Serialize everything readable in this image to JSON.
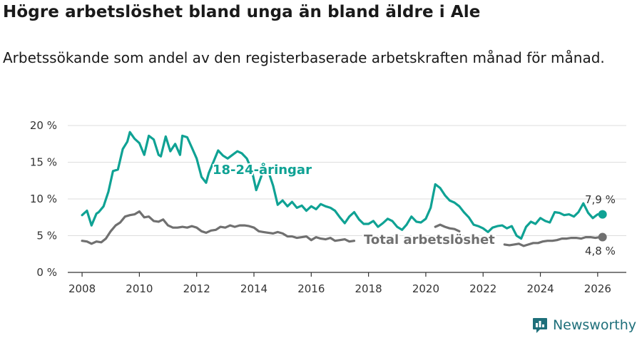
{
  "title": "Högre arbetslöshet bland unga än bland äldre i Ale",
  "subtitle": "Arbetssökande som andel av den registerbaserade arbetskraften månad för månad.",
  "brand": "Newsworthy",
  "colors": {
    "youth": "#0fa294",
    "total": "#707070",
    "grid": "#dddddd",
    "axis": "#333333"
  },
  "chart_data": {
    "type": "line",
    "title": "Högre arbetslöshet bland unga än bland äldre i Ale",
    "xlabel": "",
    "ylabel": "",
    "xlim": [
      2007.5,
      2027.0
    ],
    "ylim": [
      0,
      20
    ],
    "x_ticks": [
      2008,
      2010,
      2012,
      2014,
      2016,
      2018,
      2020,
      2022,
      2024,
      2026
    ],
    "x_tick_labels": [
      "2008",
      "2010",
      "2012",
      "2014",
      "2016",
      "2018",
      "2020",
      "2022",
      "2024",
      "2026"
    ],
    "y_ticks": [
      0,
      5,
      10,
      15,
      20
    ],
    "y_tick_labels": [
      "0 %",
      "5 %",
      "10 %",
      "15 %",
      "20 %"
    ],
    "series": [
      {
        "name": "18-24-åringar",
        "label": "18-24-åringar",
        "end_label": "7,9 %",
        "color": "#0fa294",
        "x": [
          2008.0,
          2008.17,
          2008.33,
          2008.5,
          2008.58,
          2008.75,
          2008.92,
          2009.08,
          2009.25,
          2009.42,
          2009.58,
          2009.67,
          2009.83,
          2010.0,
          2010.17,
          2010.33,
          2010.5,
          2010.67,
          2010.75,
          2010.92,
          2011.08,
          2011.25,
          2011.42,
          2011.5,
          2011.67,
          2011.83,
          2012.0,
          2012.17,
          2012.33,
          2012.42,
          2012.58,
          2012.75,
          2012.92,
          2013.08,
          2013.25,
          2013.42,
          2013.58,
          2013.75,
          2013.92,
          2014.08,
          2014.25,
          2014.33,
          2014.5,
          2014.67,
          2014.83,
          2015.0,
          2015.17,
          2015.33,
          2015.5,
          2015.67,
          2015.83,
          2016.0,
          2016.17,
          2016.33,
          2016.5,
          2016.67,
          2016.83,
          2017.0,
          2017.17,
          2017.33,
          2017.5,
          2017.67,
          2017.83,
          2018.0,
          2018.17,
          2018.33,
          2018.5,
          2018.67,
          2018.83,
          2019.0,
          2019.17,
          2019.33,
          2019.5,
          2019.67,
          2019.83,
          2020.0,
          2020.17,
          2020.33,
          2020.5,
          2020.67,
          2020.83,
          2021.0,
          2021.17,
          2021.33,
          2021.5,
          2021.67,
          2021.83,
          2022.0,
          2022.17,
          2022.33,
          2022.5,
          2022.67,
          2022.83,
          2023.0,
          2023.17,
          2023.33,
          2023.5,
          2023.67,
          2023.83,
          2024.0,
          2024.17,
          2024.33,
          2024.5,
          2024.67,
          2024.83,
          2025.0,
          2025.17,
          2025.33,
          2025.5,
          2025.67,
          2025.83,
          2026.0,
          2026.17
        ],
        "y": [
          7.8,
          8.4,
          6.4,
          8.0,
          8.2,
          9.0,
          11.0,
          13.8,
          14.0,
          16.8,
          17.8,
          19.1,
          18.2,
          17.6,
          16.0,
          18.6,
          18.1,
          16.0,
          15.8,
          18.5,
          16.5,
          17.5,
          16.0,
          18.6,
          18.4,
          17.0,
          15.5,
          13.0,
          12.2,
          13.5,
          15.0,
          16.6,
          15.9,
          15.5,
          16.0,
          16.5,
          16.2,
          15.5,
          14.0,
          11.2,
          13.0,
          14.0,
          13.8,
          11.8,
          9.2,
          9.8,
          9.0,
          9.6,
          8.8,
          9.1,
          8.4,
          9.0,
          8.6,
          9.3,
          9.0,
          8.8,
          8.4,
          7.5,
          6.7,
          7.6,
          8.2,
          7.2,
          6.6,
          6.6,
          7.0,
          6.2,
          6.7,
          7.3,
          7.0,
          6.2,
          5.8,
          6.5,
          7.6,
          6.9,
          6.8,
          7.3,
          8.8,
          12.0,
          11.5,
          10.5,
          9.8,
          9.5,
          9.0,
          8.2,
          7.5,
          6.5,
          6.3,
          6.0,
          5.5,
          6.1,
          6.3,
          6.4,
          6.0,
          6.3,
          5.0,
          4.6,
          6.2,
          6.9,
          6.6,
          7.4,
          7.0,
          6.8,
          8.2,
          8.1,
          7.8,
          7.9,
          7.6,
          8.2,
          9.4,
          8.1,
          7.4,
          7.9,
          7.9
        ]
      },
      {
        "name": "Total arbetslöshet",
        "label": "Total arbetslöshet",
        "end_label": "4,8 %",
        "color": "#707070",
        "x": [
          2008.0,
          2008.17,
          2008.33,
          2008.5,
          2008.67,
          2008.83,
          2009.0,
          2009.17,
          2009.33,
          2009.5,
          2009.67,
          2009.83,
          2010.0,
          2010.17,
          2010.33,
          2010.5,
          2010.67,
          2010.83,
          2011.0,
          2011.17,
          2011.33,
          2011.5,
          2011.67,
          2011.83,
          2012.0,
          2012.17,
          2012.33,
          2012.5,
          2012.67,
          2012.83,
          2013.0,
          2013.17,
          2013.33,
          2013.5,
          2013.67,
          2013.83,
          2014.0,
          2014.17,
          2014.33,
          2014.5,
          2014.67,
          2014.83,
          2015.0,
          2015.17,
          2015.33,
          2015.5,
          2015.67,
          2015.83,
          2016.0,
          2016.17,
          2016.33,
          2016.5,
          2016.67,
          2016.83,
          2017.0,
          2017.17,
          2017.33,
          2017.5,
          null,
          2020.33,
          2020.5,
          2020.67,
          2020.83,
          2021.0,
          2021.17,
          null,
          2022.75,
          2022.92,
          2023.08,
          2023.25,
          2023.42,
          2023.58,
          2023.75,
          2023.92,
          2024.08,
          2024.25,
          2024.42,
          2024.58,
          2024.75,
          2024.92,
          2025.08,
          2025.25,
          2025.42,
          2025.58,
          2025.75,
          2025.92,
          2026.08,
          2026.17
        ],
        "y": [
          4.3,
          4.2,
          3.9,
          4.2,
          4.1,
          4.6,
          5.6,
          6.4,
          6.8,
          7.6,
          7.8,
          7.9,
          8.3,
          7.5,
          7.6,
          7.0,
          6.9,
          7.2,
          6.4,
          6.1,
          6.1,
          6.2,
          6.1,
          6.3,
          6.1,
          5.6,
          5.4,
          5.7,
          5.8,
          6.2,
          6.1,
          6.4,
          6.2,
          6.4,
          6.4,
          6.3,
          6.1,
          5.6,
          5.5,
          5.4,
          5.3,
          5.5,
          5.3,
          4.9,
          4.9,
          4.7,
          4.8,
          4.9,
          4.4,
          4.8,
          4.6,
          4.5,
          4.7,
          4.3,
          4.4,
          4.5,
          4.2,
          4.3,
          null,
          6.2,
          6.5,
          6.2,
          6.0,
          5.9,
          5.6,
          null,
          3.8,
          3.7,
          3.8,
          3.9,
          3.6,
          3.8,
          4.0,
          4.0,
          4.2,
          4.3,
          4.3,
          4.4,
          4.6,
          4.6,
          4.7,
          4.7,
          4.6,
          4.8,
          4.8,
          4.7,
          4.8,
          4.8
        ]
      }
    ]
  }
}
